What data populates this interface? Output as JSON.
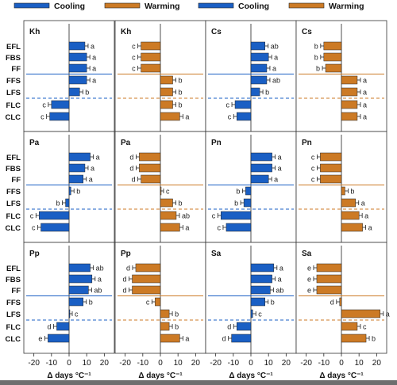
{
  "colors": {
    "cooling": "#1a5fc4",
    "warming": "#cc7a25",
    "panel_border": "#333333"
  },
  "chart_data": {
    "type": "bar",
    "orientation": "horizontal",
    "legend": [
      {
        "label": "Cooling",
        "color": "#1a5fc4"
      },
      {
        "label": "Warming",
        "color": "#cc7a25"
      },
      {
        "label": "Cooling",
        "color": "#1a5fc4"
      },
      {
        "label": "Warming",
        "color": "#cc7a25"
      }
    ],
    "rows": [
      "EFL",
      "FBS",
      "FF",
      "FFS",
      "LFS",
      "FLC",
      "CLC"
    ],
    "xlim": [
      -23,
      23
    ],
    "xticks": [
      -20,
      -10,
      0,
      10,
      20
    ],
    "xlabel": "Δ days °C⁻¹",
    "panels": [
      {
        "title": "Kh",
        "scenario": "Cooling",
        "values": [
          9,
          10,
          10,
          10,
          6,
          -10,
          -11
        ],
        "letters": [
          "a",
          "a",
          "a",
          "a",
          "b",
          "c",
          "c"
        ]
      },
      {
        "title": "Kh",
        "scenario": "Warming",
        "values": [
          -11,
          -11,
          -11,
          7,
          7,
          7,
          11
        ],
        "letters": [
          "c",
          "c",
          "c",
          "b",
          "b",
          "b",
          "a"
        ]
      },
      {
        "title": "Cs",
        "scenario": "Cooling",
        "values": [
          8,
          10,
          9,
          9,
          5,
          -9,
          -8
        ],
        "letters": [
          "ab",
          "a",
          "a",
          "ab",
          "b",
          "c",
          "c"
        ]
      },
      {
        "title": "Cs",
        "scenario": "Warming",
        "values": [
          -10,
          -10,
          -9,
          9,
          9,
          9,
          9
        ],
        "letters": [
          "b",
          "b",
          "b",
          "a",
          "a",
          "a",
          "a"
        ]
      },
      {
        "title": "Pa",
        "scenario": "Cooling",
        "values": [
          12,
          9,
          8,
          1,
          -2,
          -17,
          -16
        ],
        "letters": [
          "a",
          "a",
          "a",
          "b",
          "b",
          "c",
          "c"
        ]
      },
      {
        "title": "Pa",
        "scenario": "Warming",
        "values": [
          -12,
          -12,
          -11,
          0,
          7,
          9,
          11
        ],
        "letters": [
          "d",
          "d",
          "d",
          "c",
          "b",
          "ab",
          "a"
        ]
      },
      {
        "title": "Pn",
        "scenario": "Cooling",
        "values": [
          12,
          12,
          10,
          -3,
          -4,
          -17,
          -14
        ],
        "letters": [
          "a",
          "a",
          "a",
          "b",
          "b",
          "c",
          "c"
        ]
      },
      {
        "title": "Pn",
        "scenario": "Warming",
        "values": [
          -12,
          -12,
          -12,
          2,
          8,
          10,
          12
        ],
        "letters": [
          "c",
          "c",
          "c",
          "b",
          "a",
          "a",
          "a"
        ]
      },
      {
        "title": "Pp",
        "scenario": "Cooling",
        "values": [
          12,
          13,
          11,
          8,
          0,
          -7,
          -12
        ],
        "letters": [
          "ab",
          "a",
          "ab",
          "b",
          "c",
          "d",
          "e"
        ]
      },
      {
        "title": "Pp",
        "scenario": "Warming",
        "values": [
          -14,
          -16,
          -16,
          -3,
          5,
          5,
          11
        ],
        "letters": [
          "d",
          "d",
          "d",
          "c",
          "b",
          "b",
          "a"
        ]
      },
      {
        "title": "Sa",
        "scenario": "Cooling",
        "values": [
          13,
          12,
          11,
          8,
          1,
          -8,
          -11
        ],
        "letters": [
          "a",
          "a",
          "ab",
          "b",
          "c",
          "d",
          "d"
        ]
      },
      {
        "title": "Sa",
        "scenario": "Warming",
        "values": [
          -14,
          -14,
          -14,
          -1,
          22,
          9,
          14
        ],
        "letters": [
          "e",
          "e",
          "e",
          "d",
          "a",
          "c",
          "b"
        ]
      }
    ]
  }
}
